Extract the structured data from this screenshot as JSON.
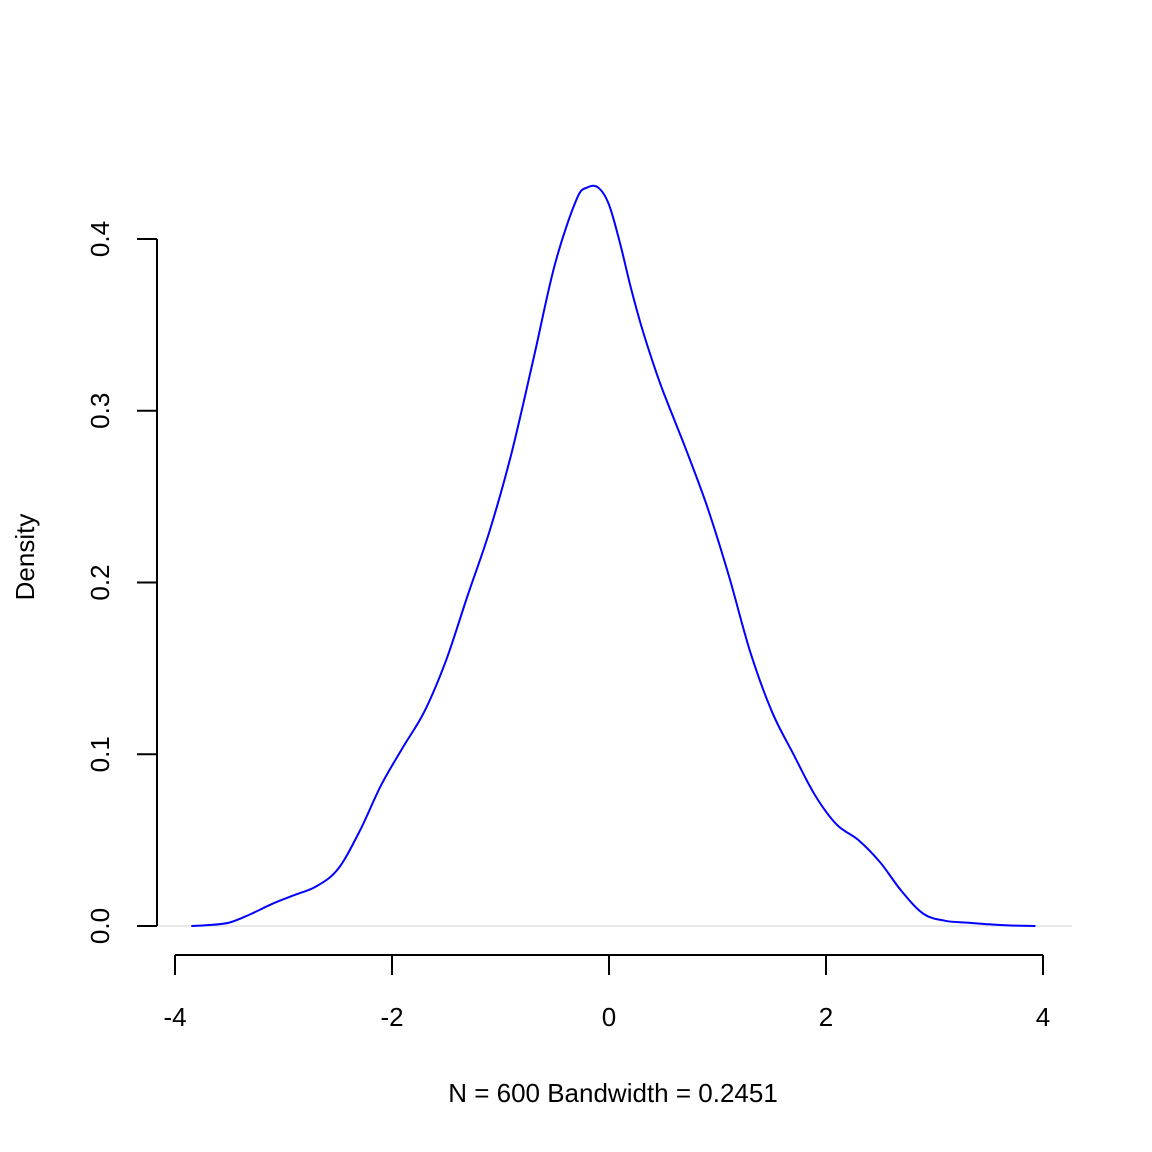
{
  "chart_data": {
    "type": "line",
    "title": "",
    "xlabel": "N = 600   Bandwidth = 0.2451",
    "ylabel": "Density",
    "xlim": [
      -4,
      4
    ],
    "ylim": [
      0,
      0.4
    ],
    "x_ticks": [
      {
        "value": -4,
        "label": "-4"
      },
      {
        "value": -2,
        "label": "-2"
      },
      {
        "value": 0,
        "label": "0"
      },
      {
        "value": 2,
        "label": "2"
      },
      {
        "value": 4,
        "label": "4"
      }
    ],
    "y_ticks": [
      {
        "value": 0.0,
        "label": "0.0"
      },
      {
        "value": 0.1,
        "label": "0.1"
      },
      {
        "value": 0.2,
        "label": "0.2"
      },
      {
        "value": 0.3,
        "label": "0.3"
      },
      {
        "value": 0.4,
        "label": "0.4"
      }
    ],
    "zero_line": true,
    "grid": false,
    "colors": {
      "line": "#0000ff",
      "axis": "#000000",
      "zero_line": "#d3d3d3"
    },
    "series": [
      {
        "x": [
          -3.85,
          -3.7,
          -3.5,
          -3.3,
          -3.1,
          -2.9,
          -2.7,
          -2.5,
          -2.3,
          -2.1,
          -1.9,
          -1.7,
          -1.5,
          -1.3,
          -1.1,
          -0.9,
          -0.7,
          -0.5,
          -0.3,
          -0.2,
          -0.1,
          0.0,
          0.1,
          0.2,
          0.3,
          0.4,
          0.5,
          0.7,
          0.9,
          1.1,
          1.3,
          1.5,
          1.7,
          1.9,
          2.1,
          2.3,
          2.5,
          2.7,
          2.9,
          3.1,
          3.3,
          3.5,
          3.7,
          3.93
        ],
        "y": [
          0.0,
          0.0005,
          0.002,
          0.007,
          0.013,
          0.018,
          0.023,
          0.033,
          0.055,
          0.082,
          0.104,
          0.125,
          0.155,
          0.193,
          0.23,
          0.275,
          0.329,
          0.385,
          0.423,
          0.43,
          0.43,
          0.42,
          0.398,
          0.372,
          0.349,
          0.329,
          0.311,
          0.279,
          0.245,
          0.205,
          0.16,
          0.125,
          0.1,
          0.076,
          0.059,
          0.05,
          0.037,
          0.02,
          0.007,
          0.003,
          0.002,
          0.001,
          0.0003,
          0.0
        ]
      }
    ]
  }
}
